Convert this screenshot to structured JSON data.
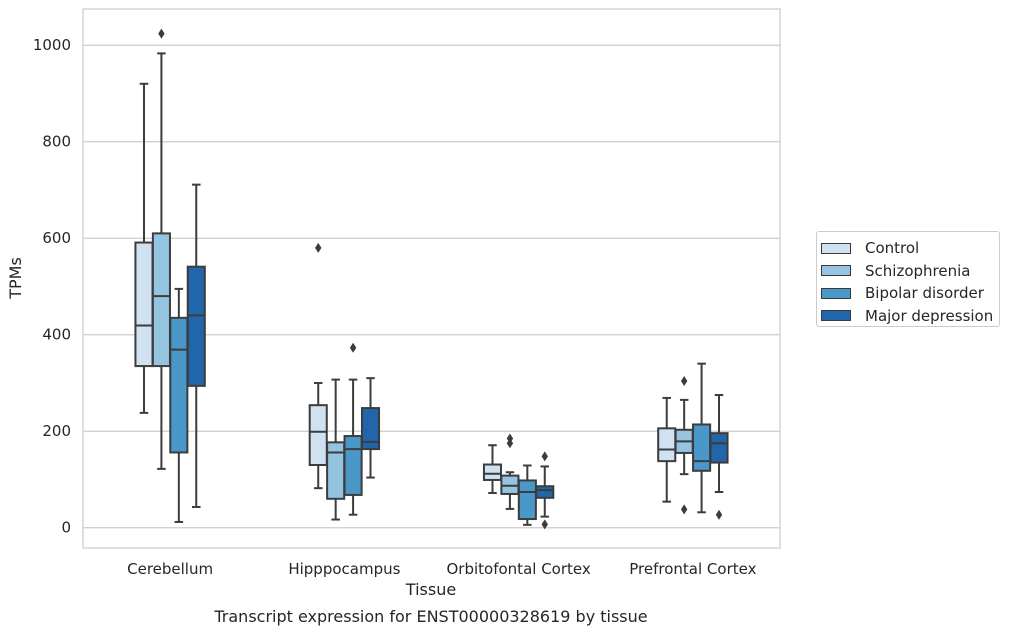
{
  "chart_data": {
    "type": "boxplot",
    "title": "Transcript expression for ENST00000328619 by tissue",
    "xlabel": "Tissue",
    "ylabel": "TPMs",
    "ylim": [
      -42,
      1075
    ],
    "yticks": [
      0,
      200,
      400,
      600,
      800,
      1000
    ],
    "grid": true,
    "legend_position": "right",
    "categories": [
      "Cerebellum",
      "Hipppocampus",
      "Orbitofontal Cortex",
      "Prefrontal Cortex"
    ],
    "series": [
      {
        "name": "Control",
        "color": "#d0e1f2",
        "boxes": [
          {
            "whisker_low": 238,
            "q1": 335,
            "median": 419,
            "q3": 591,
            "whisker_high": 920,
            "outliers": []
          },
          {
            "whisker_low": 82,
            "q1": 130,
            "median": 199,
            "q3": 254,
            "whisker_high": 300,
            "outliers": [
              580
            ]
          },
          {
            "whisker_low": 72,
            "q1": 99,
            "median": 112,
            "q3": 131,
            "whisker_high": 171,
            "outliers": []
          },
          {
            "whisker_low": 54,
            "q1": 138,
            "median": 162,
            "q3": 206,
            "whisker_high": 269,
            "outliers": []
          }
        ]
      },
      {
        "name": "Schizophrenia",
        "color": "#94c4df",
        "boxes": [
          {
            "whisker_low": 122,
            "q1": 335,
            "median": 480,
            "q3": 610,
            "whisker_high": 983,
            "outliers": [
              1024
            ]
          },
          {
            "whisker_low": 17,
            "q1": 60,
            "median": 156,
            "q3": 177,
            "whisker_high": 307,
            "outliers": []
          },
          {
            "whisker_low": 39,
            "q1": 70,
            "median": 87,
            "q3": 108,
            "whisker_high": 115,
            "outliers": [
              185,
              175
            ]
          },
          {
            "whisker_low": 111,
            "q1": 155,
            "median": 179,
            "q3": 203,
            "whisker_high": 265,
            "outliers": [
              304,
              38
            ]
          }
        ]
      },
      {
        "name": "Bipolar disorder",
        "color": "#4a98c9",
        "boxes": [
          {
            "whisker_low": 12,
            "q1": 156,
            "median": 369,
            "q3": 435,
            "whisker_high": 495,
            "outliers": []
          },
          {
            "whisker_low": 27,
            "q1": 68,
            "median": 163,
            "q3": 190,
            "whisker_high": 307,
            "outliers": [
              373
            ]
          },
          {
            "whisker_low": 6,
            "q1": 18,
            "median": 74,
            "q3": 98,
            "whisker_high": 129,
            "outliers": []
          },
          {
            "whisker_low": 32,
            "q1": 118,
            "median": 138,
            "q3": 214,
            "whisker_high": 340,
            "outliers": []
          }
        ]
      },
      {
        "name": "Major depression",
        "color": "#2165ab",
        "boxes": [
          {
            "whisker_low": 43,
            "q1": 294,
            "median": 440,
            "q3": 541,
            "whisker_high": 711,
            "outliers": []
          },
          {
            "whisker_low": 104,
            "q1": 163,
            "median": 178,
            "q3": 248,
            "whisker_high": 310,
            "outliers": []
          },
          {
            "whisker_low": 23,
            "q1": 62,
            "median": 78,
            "q3": 86,
            "whisker_high": 127,
            "outliers": [
              148,
              7
            ]
          },
          {
            "whisker_low": 74,
            "q1": 135,
            "median": 175,
            "q3": 196,
            "whisker_high": 275,
            "outliers": [
              27
            ]
          }
        ]
      }
    ]
  }
}
